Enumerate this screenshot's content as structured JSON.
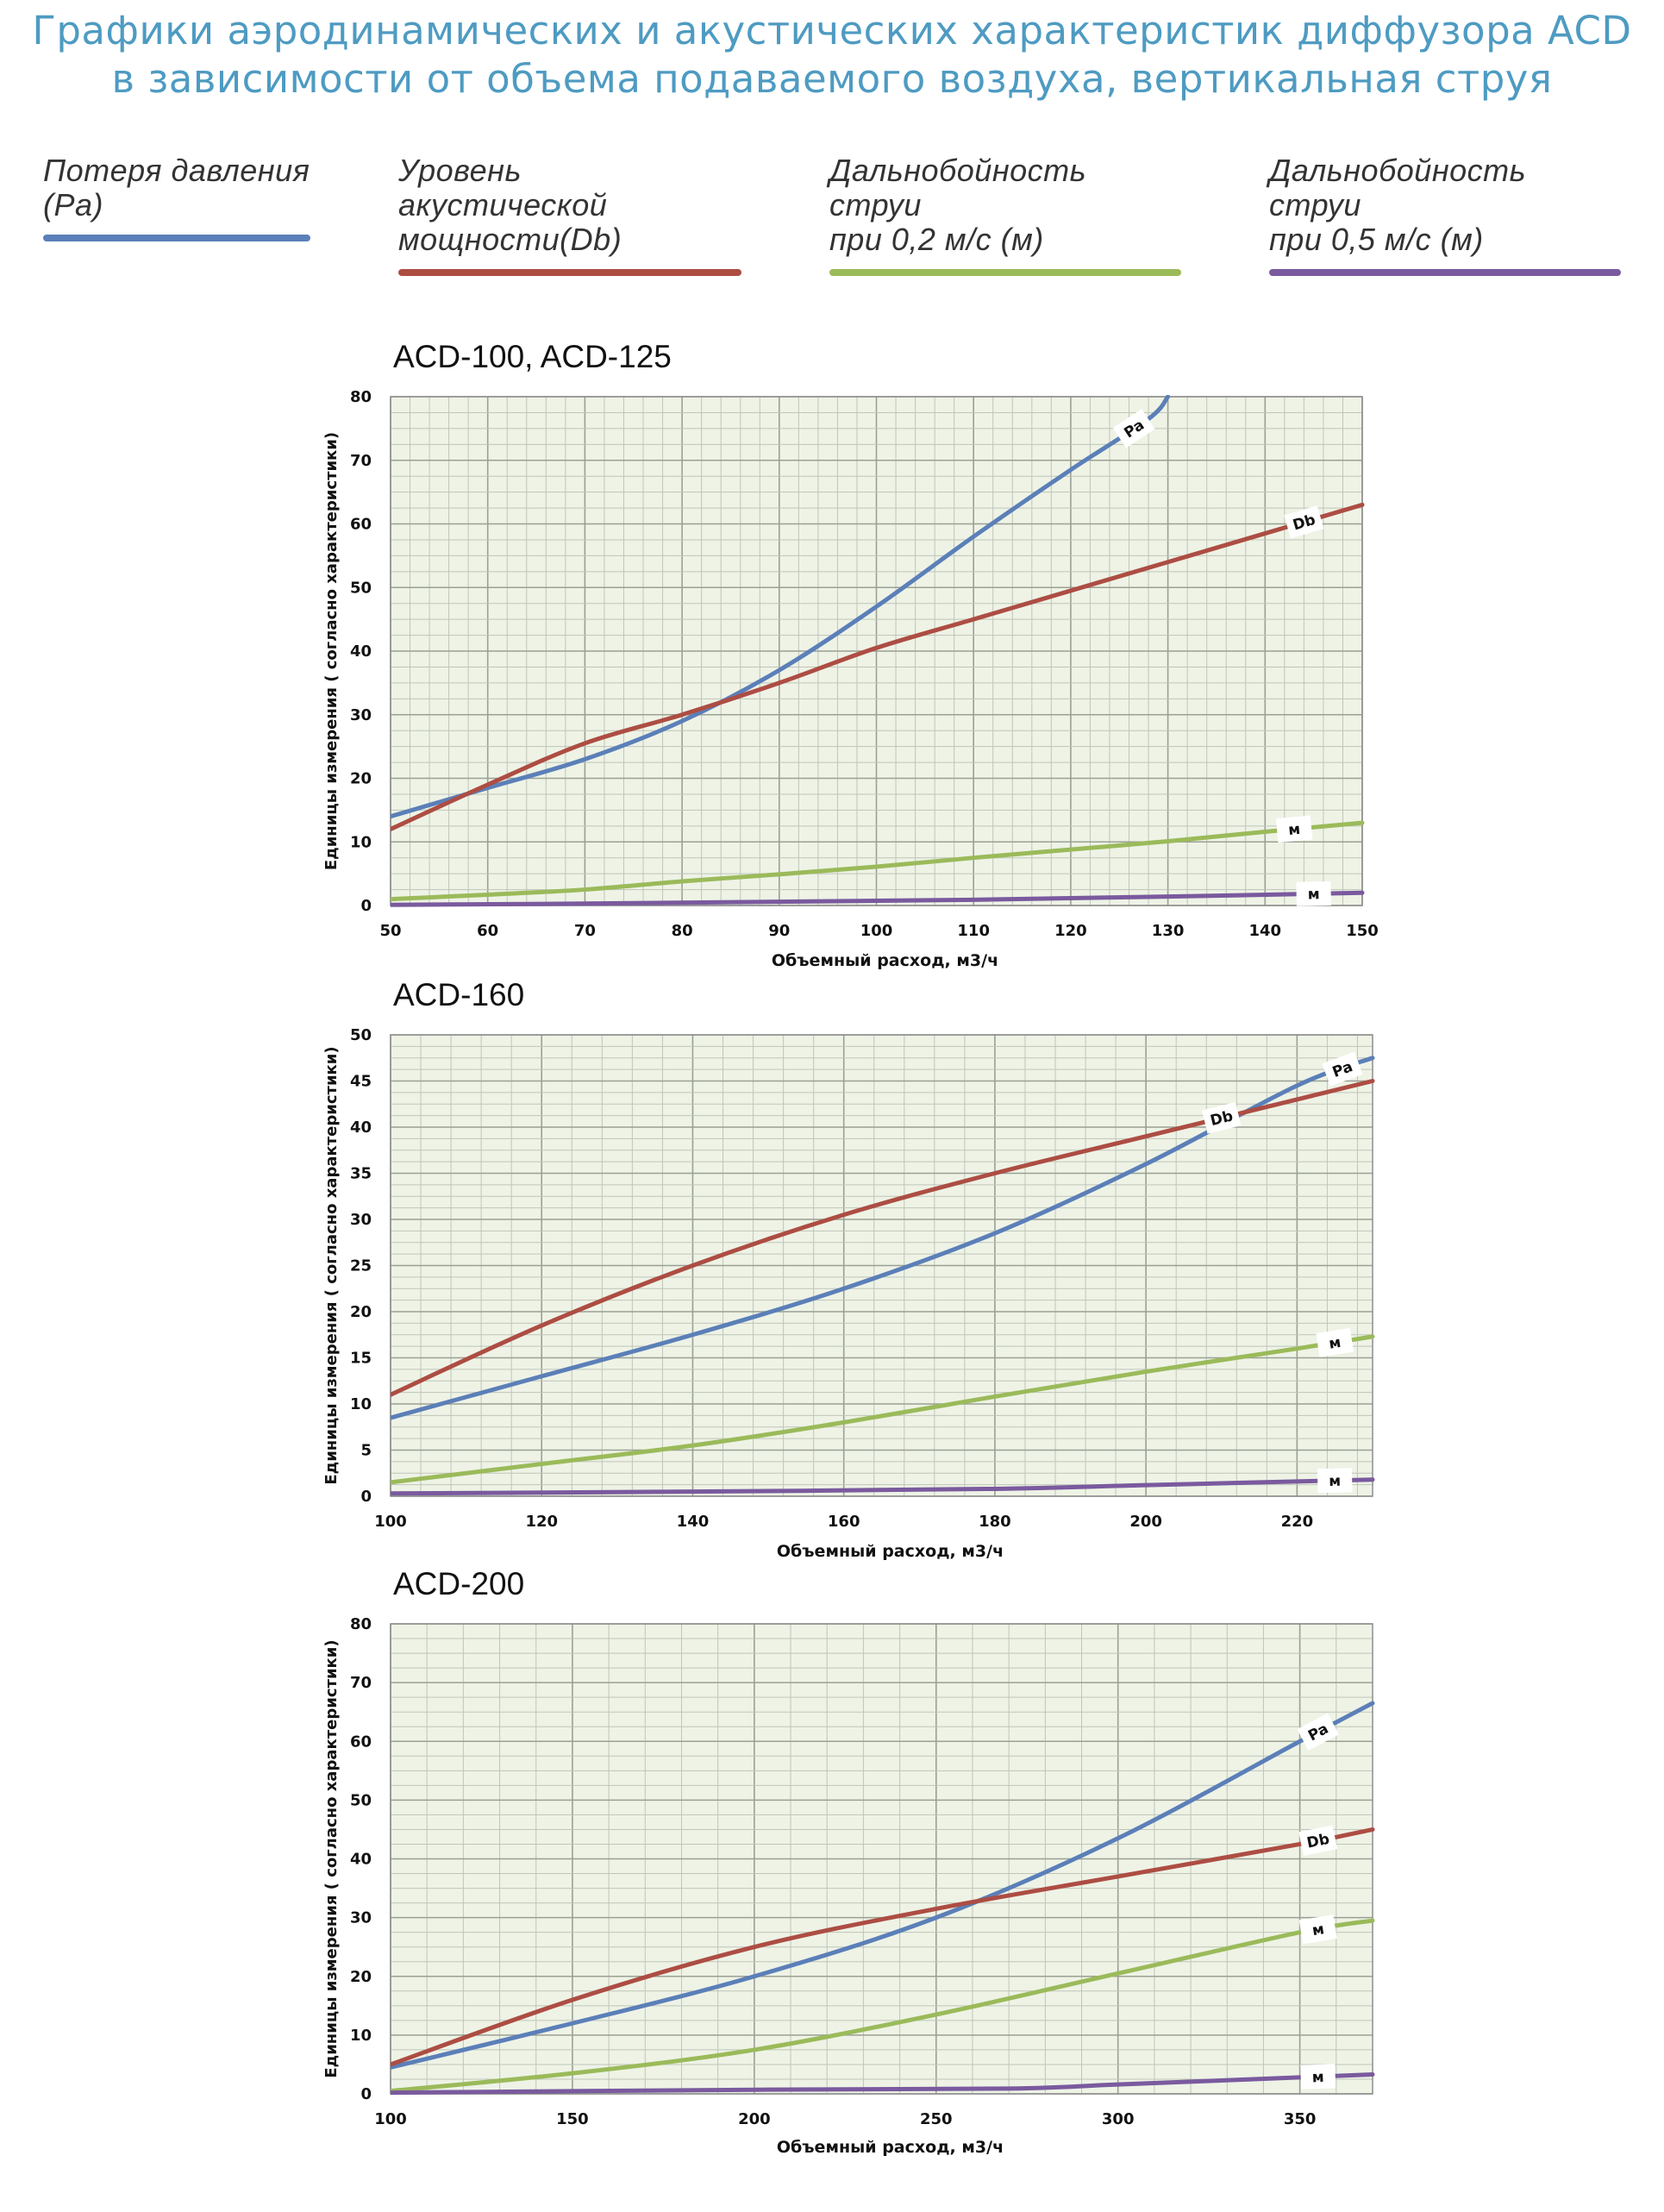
{
  "title_line1": "Графики аэродинамических и акустических характеристик диффузора ACD",
  "title_line2": "в зависимости от объема подаваемого воздуха, вертикальная струя",
  "legend": [
    {
      "line1": "Потеря давления",
      "line2": "(Pa)",
      "color": "#5b7fb8"
    },
    {
      "line1": "Уровень акустической",
      "line2": "мощности(Db)",
      "color": "#ad4d43"
    },
    {
      "line1": "Дальнобойность струи",
      "line2": "при 0,2 м/с (м)",
      "color": "#9bba5a"
    },
    {
      "line1": "Дальнобойность струи",
      "line2": "при 0,5 м/с (м)",
      "color": "#7a5a9e"
    }
  ],
  "colors": {
    "pa": "#5b7fb8",
    "db": "#ad4d43",
    "m02": "#9bba5a",
    "m05": "#7a5a9e",
    "plot_bg": "#eef3e6",
    "grid": "#bfc5b8"
  },
  "chart_data": [
    {
      "type": "line",
      "title": "ACD-100, ACD-125",
      "xlabel": "Объемный расход, м3/ч",
      "ylabel": "Единицы измерения ( согласно характеристики)",
      "xlim": [
        50,
        150
      ],
      "ylim": [
        0,
        80
      ],
      "xticks": [
        50,
        60,
        70,
        80,
        90,
        100,
        110,
        120,
        130,
        140,
        150
      ],
      "yticks": [
        0,
        10,
        20,
        30,
        40,
        50,
        60,
        70,
        80
      ],
      "grid": true,
      "series": [
        {
          "name": "Pa",
          "key": "pa",
          "x": [
            50,
            60,
            70,
            80,
            90,
            100,
            110,
            120,
            128,
            130
          ],
          "y": [
            14,
            18.5,
            23,
            29,
            37,
            47,
            58,
            68.5,
            76.5,
            80
          ]
        },
        {
          "name": "Db",
          "key": "db",
          "x": [
            50,
            60,
            70,
            80,
            90,
            100,
            110,
            120,
            130,
            140,
            150
          ],
          "y": [
            12,
            19,
            25.5,
            30,
            35,
            40.5,
            45,
            49.5,
            54,
            58.5,
            63
          ]
        },
        {
          "name": "м",
          "key": "m02",
          "x": [
            50,
            60,
            70,
            80,
            90,
            100,
            110,
            120,
            130,
            140,
            150
          ],
          "y": [
            1,
            1.7,
            2.5,
            3.8,
            4.9,
            6.1,
            7.5,
            8.8,
            10.1,
            11.6,
            13
          ]
        },
        {
          "name": "м",
          "key": "m05",
          "x": [
            50,
            70,
            90,
            110,
            130,
            150
          ],
          "y": [
            0.1,
            0.3,
            0.6,
            0.9,
            1.4,
            2
          ]
        }
      ]
    },
    {
      "type": "line",
      "title": "ACD-160",
      "xlabel": "Объемный расход, м3/ч",
      "ylabel": "Единицы измерения ( согласно характеристики)",
      "xlim": [
        100,
        230
      ],
      "ylim": [
        0,
        50
      ],
      "xticks": [
        100,
        120,
        140,
        160,
        180,
        200,
        220
      ],
      "yticks": [
        0,
        5,
        10,
        15,
        20,
        25,
        30,
        35,
        40,
        45,
        50
      ],
      "grid": true,
      "series": [
        {
          "name": "Pa",
          "key": "pa",
          "x": [
            100,
            120,
            140,
            160,
            180,
            200,
            220,
            230
          ],
          "y": [
            8.5,
            13,
            17.5,
            22.5,
            28.5,
            36,
            44.5,
            47.5
          ]
        },
        {
          "name": "Db",
          "key": "db",
          "x": [
            100,
            120,
            140,
            160,
            180,
            200,
            220,
            230
          ],
          "y": [
            11,
            18.5,
            25,
            30.5,
            35,
            39,
            43,
            45
          ]
        },
        {
          "name": "м",
          "key": "m02",
          "x": [
            100,
            120,
            140,
            160,
            180,
            200,
            220,
            230
          ],
          "y": [
            1.5,
            3.5,
            5.5,
            8,
            10.8,
            13.5,
            16,
            17.3
          ]
        },
        {
          "name": "м",
          "key": "m05",
          "x": [
            100,
            140,
            180,
            200,
            230
          ],
          "y": [
            0.3,
            0.5,
            0.8,
            1.2,
            1.8
          ]
        }
      ]
    },
    {
      "type": "line",
      "title": "ACD-200",
      "xlabel": "Объемный расход, м3/ч",
      "ylabel": "Единицы измерения ( согласно характеристики)",
      "xlim": [
        100,
        370
      ],
      "ylim": [
        0,
        80
      ],
      "xticks": [
        100,
        150,
        200,
        250,
        300,
        350
      ],
      "yticks": [
        0,
        10,
        20,
        30,
        40,
        50,
        60,
        70,
        80
      ],
      "grid": true,
      "series": [
        {
          "name": "Pa",
          "key": "pa",
          "x": [
            100,
            150,
            200,
            250,
            300,
            350,
            370
          ],
          "y": [
            4.5,
            12,
            20,
            30,
            43.5,
            60,
            66.5
          ]
        },
        {
          "name": "Db",
          "key": "db",
          "x": [
            100,
            150,
            200,
            250,
            300,
            350,
            370
          ],
          "y": [
            5,
            16,
            25,
            31.5,
            37,
            42.5,
            45
          ]
        },
        {
          "name": "м",
          "key": "m02",
          "x": [
            100,
            150,
            200,
            250,
            300,
            350,
            370
          ],
          "y": [
            0.5,
            3.5,
            7.5,
            13.5,
            20.5,
            27.5,
            29.5
          ]
        },
        {
          "name": "м",
          "key": "m05",
          "x": [
            100,
            200,
            270,
            300,
            350,
            370
          ],
          "y": [
            0.2,
            0.7,
            0.9,
            1.6,
            2.8,
            3.3
          ]
        }
      ]
    }
  ]
}
